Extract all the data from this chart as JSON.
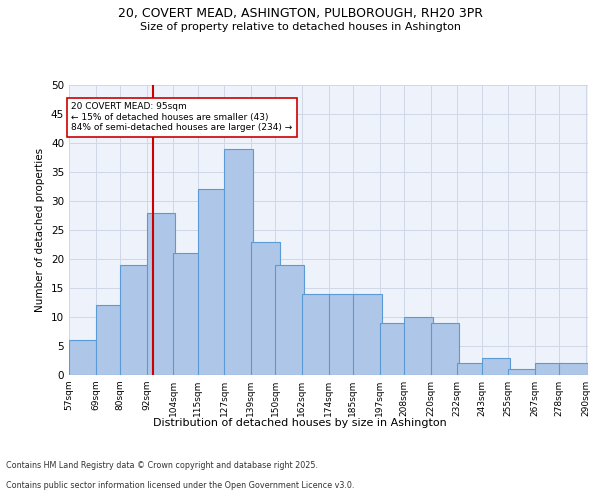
{
  "title_line1": "20, COVERT MEAD, ASHINGTON, PULBOROUGH, RH20 3PR",
  "title_line2": "Size of property relative to detached houses in Ashington",
  "xlabel": "Distribution of detached houses by size in Ashington",
  "ylabel": "Number of detached properties",
  "footer_line1": "Contains HM Land Registry data © Crown copyright and database right 2025.",
  "footer_line2": "Contains public sector information licensed under the Open Government Licence v3.0.",
  "annotation_line1": "20 COVERT MEAD: 95sqm",
  "annotation_line2": "← 15% of detached houses are smaller (43)",
  "annotation_line3": "84% of semi-detached houses are larger (234) →",
  "property_size": 95,
  "bar_left_edges": [
    57,
    69,
    80,
    92,
    104,
    115,
    127,
    139,
    150,
    162,
    174,
    185,
    197,
    208,
    220,
    232,
    243,
    255,
    267,
    278
  ],
  "bar_heights": [
    6,
    12,
    19,
    28,
    21,
    32,
    39,
    23,
    19,
    14,
    14,
    14,
    9,
    10,
    9,
    2,
    3,
    1,
    2,
    2
  ],
  "bin_width": 13,
  "bar_color": "#aec6e8",
  "bar_edge_color": "#5b9bd5",
  "grid_color": "#d0d8e8",
  "background_color": "#eef2fa",
  "vline_color": "#cc0000",
  "vline_x": 95,
  "annotation_box_color": "#cc0000",
  "ylim": [
    0,
    50
  ],
  "yticks": [
    0,
    5,
    10,
    15,
    20,
    25,
    30,
    35,
    40,
    45,
    50
  ],
  "tick_labels": [
    "57sqm",
    "69sqm",
    "80sqm",
    "92sqm",
    "104sqm",
    "115sqm",
    "127sqm",
    "139sqm",
    "150sqm",
    "162sqm",
    "174sqm",
    "185sqm",
    "197sqm",
    "208sqm",
    "220sqm",
    "232sqm",
    "243sqm",
    "255sqm",
    "267sqm",
    "278sqm",
    "290sqm"
  ],
  "figsize": [
    6.0,
    5.0
  ],
  "dpi": 100
}
